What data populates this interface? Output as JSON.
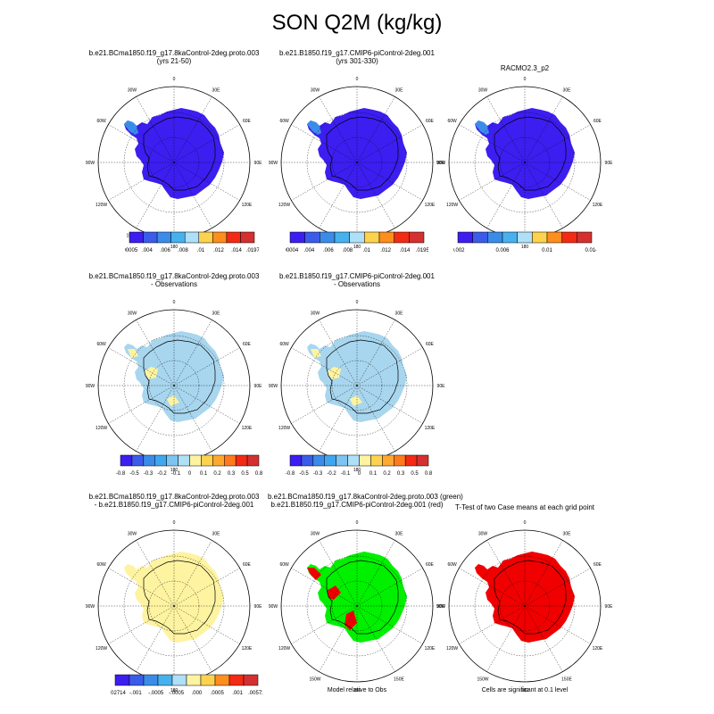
{
  "title": "SON Q2M (kg/kg)",
  "colors": {
    "case_field": "#3c1ef0",
    "diff_blue": "#a8d6ee",
    "diff_yellow": "#fef3a0",
    "green": "#00f000",
    "red": "#f00000"
  },
  "rows": [
    {
      "panels": [
        {
          "title_lines": [
            "b.e21.BCma1850.f19_g17.8kaControl-2deg.proto.003",
            "(yrs 21-50)"
          ],
          "fill": "case",
          "blobs": "none",
          "colorbar": {
            "colors": [
              "#3c1ef0",
              "#3a5ce8",
              "#3b8ce8",
              "#47b1ee",
              "#aee0f7",
              "#fdd24e",
              "#fe8e1d",
              "#f32a14",
              "#d43030"
            ],
            "labels": [
              ".00005",
              ".004",
              ".006",
              ".008",
              ".01",
              ".012",
              ".014",
              ".01972"
            ]
          }
        },
        {
          "title_lines": [
            "b.e21.B1850.f19_g17.CMIP6-piControl-2deg.001",
            "(yrs 301-330)"
          ],
          "fill": "case",
          "blobs": "none",
          "colorbar": {
            "colors": [
              "#3c1ef0",
              "#3a5ce8",
              "#3b8ce8",
              "#47b1ee",
              "#aee0f7",
              "#fdd24e",
              "#fe8e1d",
              "#f32a14",
              "#d43030"
            ],
            "labels": [
              ".00004",
              ".004",
              ".006",
              ".008",
              ".01",
              ".012",
              ".014",
              ".01955"
            ]
          }
        },
        {
          "title_lines": [
            "RACMO2.3_p2"
          ],
          "fill": "case",
          "blobs": "none",
          "colorbar": {
            "colors": [
              "#3c1ef0",
              "#3a5ce8",
              "#3b8ce8",
              "#47b1ee",
              "#aee0f7",
              "#fdd24e",
              "#fe8e1d",
              "#f32a14",
              "#d43030"
            ],
            "labels": [
              "0.002",
              "0.006",
              "0.01",
              "0.014"
            ]
          }
        }
      ]
    },
    {
      "panels": [
        {
          "title_lines": [
            "b.e21.BCma1850.f19_g17.8kaControl-2deg.proto.003",
            "- Observations"
          ],
          "fill": "diff",
          "blobs": "yellow",
          "colorbar": {
            "colors": [
              "#3c1ef0",
              "#3a5ce8",
              "#3b8ce8",
              "#3fa7ee",
              "#7cc5f2",
              "#aee0f7",
              "#fef3a0",
              "#fdd24e",
              "#fea832",
              "#fe7a1d",
              "#f32a14",
              "#d43030"
            ],
            "labels": [
              "-0.8",
              "-0.5",
              "-0.3",
              "-0.2",
              "-0.1",
              "0",
              "0.1",
              "0.2",
              "0.3",
              "0.5",
              "0.8"
            ]
          }
        },
        {
          "title_lines": [
            "b.e21.B1850.f19_g17.CMIP6-piControl-2deg.001",
            "- Observations"
          ],
          "fill": "diff",
          "blobs": "yellow",
          "colorbar": {
            "colors": [
              "#3c1ef0",
              "#3a5ce8",
              "#3b8ce8",
              "#3fa7ee",
              "#7cc5f2",
              "#aee0f7",
              "#fef3a0",
              "#fdd24e",
              "#fea832",
              "#fe7a1d",
              "#f32a14",
              "#d43030"
            ],
            "labels": [
              "-0.8",
              "-0.5",
              "-0.3",
              "-0.2",
              "-0.1",
              "0",
              "0.1",
              "0.2",
              "0.3",
              "0.5",
              "0.8"
            ]
          }
        }
      ]
    },
    {
      "panels": [
        {
          "title_lines": [
            "b.e21.BCma1850.f19_g17.8kaControl-2deg.proto.003",
            "- b.e21.B1850.f19_g17.CMIP6-piControl-2deg.001"
          ],
          "fill": "yellow",
          "blobs": "none",
          "colorbar": {
            "colors": [
              "#3c1ef0",
              "#3a5ce8",
              "#3b8ce8",
              "#47b1ee",
              "#aee0f7",
              "#fef3a0",
              "#fdd24e",
              "#fe8e1d",
              "#f32a14",
              "#d43030"
            ],
            "labels": [
              "-.002714",
              "-.001",
              "-.0005",
              "-.0005",
              ".000",
              ".0005",
              ".001",
              ".005729"
            ]
          },
          "note": ""
        },
        {
          "title_lines": [
            "b.e21.BCma1850.f19_g17.8kaControl-2deg.proto.003 (green)",
            "b.e21.B1850.f19_g17.CMIP6-piControl-2deg.001 (red)"
          ],
          "fill": "green",
          "blobs": "red",
          "colorbar": null,
          "note": "Model relative to Obs"
        },
        {
          "title_lines": [
            "T-Test of two Case means at each grid point"
          ],
          "fill": "red",
          "blobs": "none",
          "colorbar": null,
          "note": "Cells are significant at 0.1 level"
        }
      ]
    }
  ],
  "map_labels": {
    "lon": [
      "0",
      "30E",
      "60E",
      "90E",
      "120E",
      "150E",
      "180",
      "150W",
      "120W",
      "90W",
      "60W",
      "30W"
    ]
  },
  "chart_data": {
    "type": "heatmap",
    "title": "SON Q2M (kg/kg)",
    "projection": "south polar stereographic",
    "panels": [
      {
        "name": "8kaControl case",
        "range": [
          5e-05,
          0.01972
        ]
      },
      {
        "name": "piControl case",
        "range": [
          4e-05,
          0.01955
        ]
      },
      {
        "name": "RACMO2.3_p2 observations",
        "ticks": [
          0.002,
          0.006,
          0.01,
          0.014
        ]
      },
      {
        "name": "8kaControl - Observations",
        "levels": [
          -0.8,
          -0.5,
          -0.3,
          -0.2,
          -0.1,
          0,
          0.1,
          0.2,
          0.3,
          0.5,
          0.8
        ]
      },
      {
        "name": "piControl - Observations",
        "levels": [
          -0.8,
          -0.5,
          -0.3,
          -0.2,
          -0.1,
          0,
          0.1,
          0.2,
          0.3,
          0.5,
          0.8
        ]
      },
      {
        "name": "8kaControl - piControl",
        "range": [
          -0.002714,
          0.005729
        ]
      },
      {
        "name": "Model relative to Obs",
        "legend": [
          "8kaControl (green)",
          "piControl (red)"
        ]
      },
      {
        "name": "T-Test",
        "significance_level": 0.1
      }
    ]
  }
}
